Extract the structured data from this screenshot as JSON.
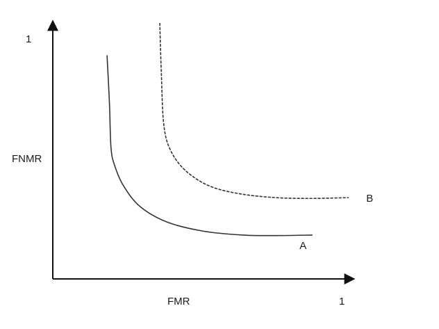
{
  "chart_data": {
    "type": "line",
    "title": "",
    "xlabel": "FMR",
    "ylabel": "FNMR",
    "x_max_label": "1",
    "y_max_label": "1",
    "xlim": [
      0,
      1
    ],
    "ylim": [
      0,
      1
    ],
    "grid": false,
    "series": [
      {
        "name": "A",
        "style": "solid",
        "color": "#333333",
        "x": [
          0.18,
          0.188,
          0.193,
          0.205,
          0.235,
          0.29,
          0.38,
          0.5,
          0.63,
          0.74,
          0.86
        ],
        "y": [
          0.865,
          0.68,
          0.51,
          0.44,
          0.36,
          0.28,
          0.22,
          0.185,
          0.17,
          0.168,
          0.17
        ]
      },
      {
        "name": "B",
        "style": "dotted",
        "color": "#333333",
        "x": [
          0.355,
          0.36,
          0.368,
          0.39,
          0.44,
          0.52,
          0.62,
          0.74,
          0.86,
          0.98
        ],
        "y": [
          0.99,
          0.8,
          0.6,
          0.5,
          0.42,
          0.36,
          0.33,
          0.315,
          0.312,
          0.315
        ]
      }
    ]
  }
}
